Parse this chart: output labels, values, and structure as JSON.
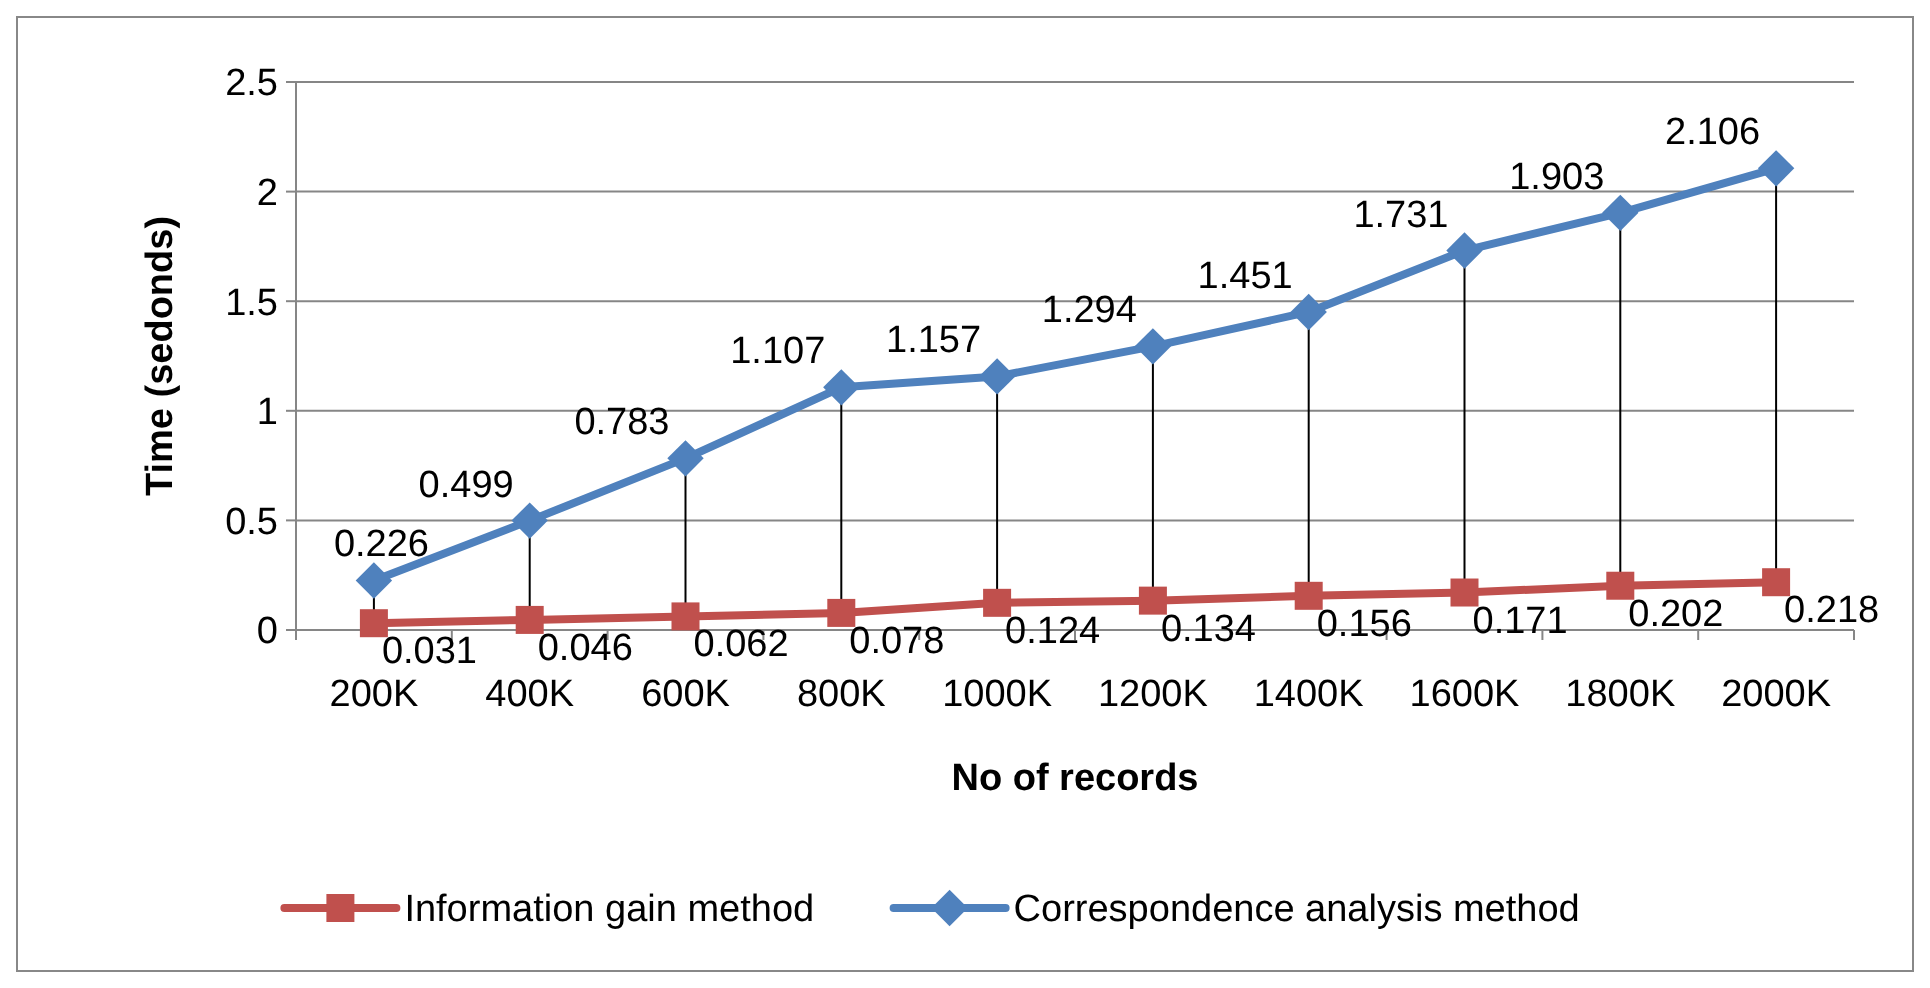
{
  "chart_data": {
    "type": "line",
    "xlabel": "No of records",
    "ylabel": "Time (sedonds)",
    "categories": [
      "200K",
      "400K",
      "600K",
      "800K",
      "1000K",
      "1200K",
      "1400K",
      "1600K",
      "1800K",
      "2000K"
    ],
    "series": [
      {
        "name": "Information gain method",
        "color": "#c0504d",
        "marker": "square",
        "values": [
          0.031,
          0.046,
          0.062,
          0.078,
          0.124,
          0.134,
          0.156,
          0.171,
          0.202,
          0.218
        ]
      },
      {
        "name": "Correspondence analysis method",
        "color": "#4f81bd",
        "marker": "diamond",
        "values": [
          0.226,
          0.499,
          0.783,
          1.107,
          1.157,
          1.294,
          1.451,
          1.731,
          1.903,
          2.106
        ]
      }
    ],
    "ylim": [
      0,
      2.5
    ],
    "yticks": [
      0,
      0.5,
      1,
      1.5,
      2,
      2.5
    ],
    "grid": "y",
    "legend": "bottom",
    "data_labels": true
  }
}
